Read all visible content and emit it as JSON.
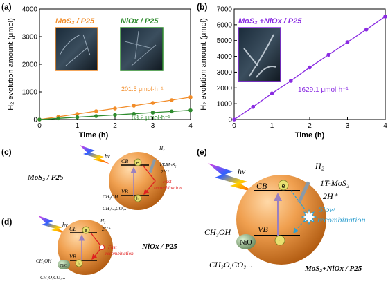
{
  "panel_a": {
    "label": "(a)",
    "legend_mos2": "MoS₂ / P25",
    "legend_niox": "NiOx / P25",
    "ylabel": "H₂ evolution amount (μmol)",
    "xlabel": "Time (h)",
    "rate_mos2": "201.5 μmol·h⁻¹",
    "rate_niox": "83.2 μmol·h⁻¹",
    "colors": {
      "mos2": "#f28c28",
      "niox": "#2e8b2e"
    }
  },
  "panel_b": {
    "label": "(b)",
    "legend": "MoS₂ +NiOx / P25",
    "ylabel": "H₂ evolution amount (μmol)",
    "xlabel": "Time (h)",
    "rate": "1629.1 μmol·h⁻¹",
    "colors": {
      "main": "#8a2be2"
    }
  },
  "chart_data": [
    {
      "type": "line",
      "xlabel": "Time (h)",
      "ylabel": "H₂ evolution amount (μmol)",
      "xlim": [
        0,
        4
      ],
      "ylim": [
        0,
        4000
      ],
      "x_ticks": [
        0,
        1,
        2,
        3,
        4
      ],
      "y_ticks": [
        0,
        1000,
        2000,
        3000,
        4000
      ],
      "series": [
        {
          "name": "MoS₂ / P25",
          "x": [
            0,
            0.5,
            1,
            1.5,
            2,
            2.5,
            3,
            3.5,
            4
          ],
          "values": [
            0,
            100,
            200,
            300,
            400,
            500,
            600,
            700,
            806
          ]
        },
        {
          "name": "NiOx / P25",
          "x": [
            0,
            0.5,
            1,
            1.5,
            2,
            2.5,
            3,
            3.5,
            4
          ],
          "values": [
            0,
            42,
            83,
            125,
            166,
            208,
            250,
            291,
            333
          ]
        }
      ]
    },
    {
      "type": "line",
      "xlabel": "Time (h)",
      "ylabel": "H₂ evolution amount (μmol)",
      "xlim": [
        0,
        4
      ],
      "ylim": [
        0,
        7000
      ],
      "x_ticks": [
        0,
        1,
        2,
        3,
        4
      ],
      "y_ticks": [
        0,
        1000,
        2000,
        3000,
        4000,
        5000,
        6000,
        7000
      ],
      "series": [
        {
          "name": "MoS₂ +NiOx / P25",
          "x": [
            0,
            0.5,
            1,
            1.5,
            2,
            2.5,
            3,
            3.5,
            4
          ],
          "values": [
            0,
            800,
            1650,
            2450,
            3300,
            4100,
            4900,
            5700,
            6520
          ]
        }
      ]
    }
  ],
  "panel_c": {
    "label": "(c)",
    "title": "MoS₂ / P25",
    "hv": "hν",
    "cb": "CB",
    "vb": "VB",
    "e": "e",
    "h": "h",
    "h2": "H₂",
    "h_plus": "2H⁺",
    "mos2": "1T-MoS₂",
    "fast": "Fast",
    "recombination": "recombination",
    "ch3oh": "CH₃OH",
    "products": "CH₂O,CO₂..."
  },
  "panel_d": {
    "label": "(d)",
    "title": "NiOx / P25",
    "hv": "hν",
    "cb": "CB",
    "vb": "VB",
    "e": "e",
    "h": "h",
    "h2": "H₂",
    "h_plus": "2H⁺",
    "nio": "NiO",
    "fast": "Fast",
    "recombination": "recombination",
    "ch3oh": "CH₃OH",
    "products": "CH₂O,CO₂..."
  },
  "panel_e": {
    "label": "(e)",
    "title": "MoS₂+NiOx / P25",
    "hv": "hν",
    "cb": "CB",
    "vb": "VB",
    "e": "e",
    "h": "h",
    "h2": "H₂",
    "mos2": "1T-MoS₂",
    "h_plus": "2H⁺",
    "slow": "Slow",
    "recombination": "recombination",
    "ch3oh": "CH₃OH",
    "nio": "NiO",
    "products": "CH₂O,CO₂..."
  }
}
